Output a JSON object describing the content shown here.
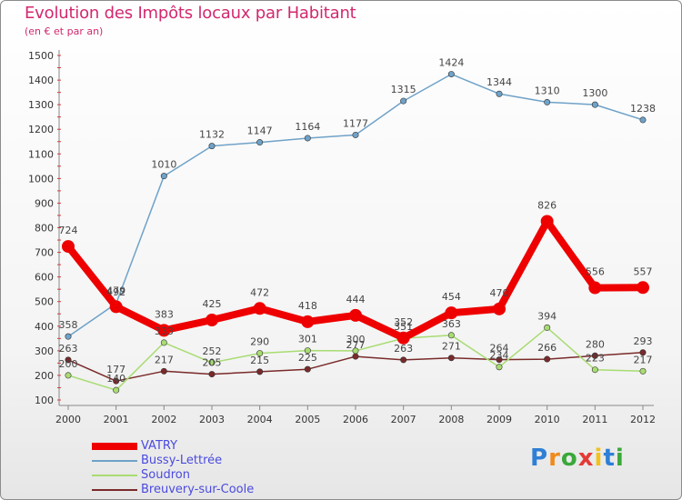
{
  "header": {
    "title": "Evolution des Impôts locaux par Habitant",
    "subtitle": "(en € et par an)"
  },
  "brand": {
    "name": "Proxiti",
    "letters": [
      "P",
      "r",
      "o",
      "x",
      "i",
      "t",
      "i"
    ],
    "colors": [
      "#2f7fd6",
      "#f08a1c",
      "#3aa83a",
      "#e53935",
      "#f2c21b",
      "#2f7fd6",
      "#3aa83a"
    ]
  },
  "chart_data": {
    "type": "line",
    "title": "Evolution des Impôts locaux par Habitant",
    "subtitle": "(en € et par an)",
    "xlabel": "",
    "ylabel": "",
    "categories": [
      "2000",
      "2001",
      "2002",
      "2003",
      "2004",
      "2005",
      "2006",
      "2007",
      "2008",
      "2009",
      "2010",
      "2011",
      "2012"
    ],
    "ylim": [
      100,
      1500
    ],
    "yticks": [
      100,
      200,
      300,
      400,
      500,
      600,
      700,
      800,
      900,
      1000,
      1100,
      1200,
      1300,
      1400,
      1500
    ],
    "grid": false,
    "legend_position": "bottom-left",
    "series": [
      {
        "name": "VATRY",
        "color": "#ee0000",
        "values": [
          724,
          479,
          383,
          425,
          472,
          418,
          444,
          352,
          454,
          470,
          826,
          556,
          557
        ]
      },
      {
        "name": "Bussy-Lettrée",
        "color": "#6fa2c8",
        "values": [
          358,
          492,
          1010,
          1132,
          1147,
          1164,
          1177,
          1315,
          1424,
          1344,
          1310,
          1300,
          1238
        ]
      },
      {
        "name": "Soudron",
        "color": "#a8dc72",
        "values": [
          200,
          140,
          333,
          252,
          290,
          301,
          300,
          351,
          363,
          234,
          394,
          223,
          217
        ]
      },
      {
        "name": "Breuvery-sur-Coole",
        "color": "#7a2a2a",
        "values": [
          263,
          177,
          217,
          205,
          215,
          225,
          277,
          263,
          271,
          264,
          266,
          280,
          293
        ]
      }
    ],
    "data_labels": [
      {
        "series": 0,
        "labels": [
          "724",
          "479",
          "383",
          "425",
          "472",
          "418",
          "444",
          "352",
          "454",
          "470",
          "826",
          "556",
          "557"
        ]
      },
      {
        "series": 1,
        "labels": [
          "358",
          "492",
          "1010",
          "1132",
          "1147",
          "1164",
          "1177",
          "1315",
          "1424",
          "1344",
          "1310",
          "1300",
          "1238"
        ]
      },
      {
        "series": 2,
        "labels": [
          "200",
          "140",
          "333",
          "252",
          "290",
          "301",
          "300",
          "351",
          "363",
          "234",
          "394",
          "223",
          "217"
        ]
      },
      {
        "series": 3,
        "labels": [
          "263",
          "177",
          "217",
          "205",
          "215",
          "225",
          "277",
          "263",
          "271",
          "264",
          "266",
          "280",
          "293"
        ]
      }
    ]
  }
}
